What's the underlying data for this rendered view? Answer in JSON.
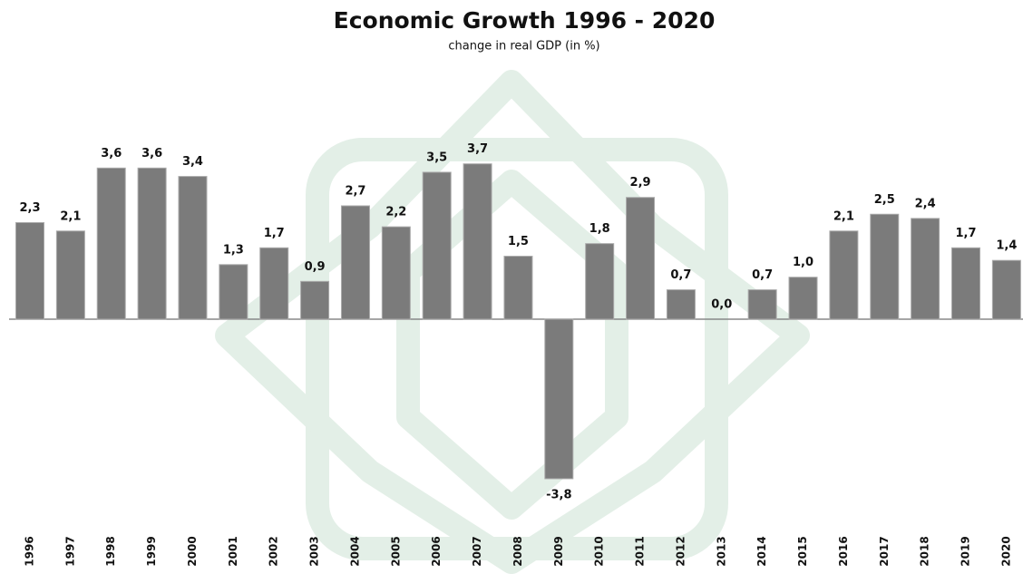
{
  "chart_data": {
    "type": "bar",
    "title": "Economic Growth  1996 - 2020",
    "subtitle": "change in real GDP (in %)",
    "categories": [
      "1996",
      "1997",
      "1998",
      "1999",
      "2000",
      "2001",
      "2002",
      "2003",
      "2004",
      "2005",
      "2006",
      "2007",
      "2008",
      "2009",
      "2010",
      "2011",
      "2012",
      "2013",
      "2014",
      "2015",
      "2016",
      "2017",
      "2018",
      "2019",
      "2020"
    ],
    "values": [
      2.3,
      2.1,
      3.6,
      3.6,
      3.4,
      1.3,
      1.7,
      0.9,
      2.7,
      2.2,
      3.5,
      3.7,
      1.5,
      -3.8,
      1.8,
      2.9,
      0.7,
      0.0,
      0.7,
      1.0,
      2.1,
      2.5,
      2.4,
      1.7,
      1.4
    ],
    "value_labels": [
      "2,3",
      "2,1",
      "3,6",
      "3,6",
      "3,4",
      "1,3",
      "1,7",
      "0,9",
      "2,7",
      "2,2",
      "3,5",
      "3,7",
      "1,5",
      "-3,8",
      "1,8",
      "2,9",
      "0,7",
      "0,0",
      "0,7",
      "1,0",
      "2,1",
      "2,5",
      "2,4",
      "1,7",
      "1,4"
    ],
    "color": "#7b7b7b"
  }
}
